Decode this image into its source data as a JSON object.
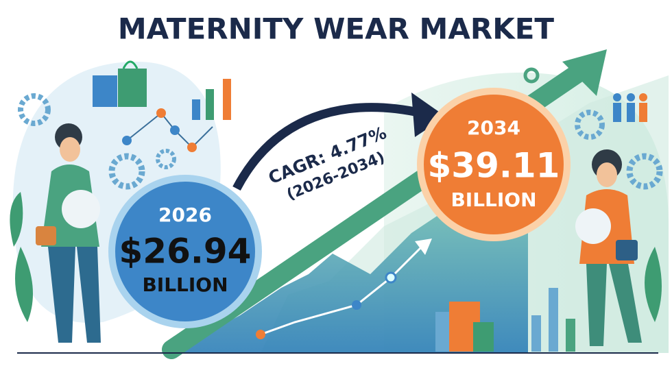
{
  "title": "MATERNITY WEAR MARKET",
  "start": {
    "year": "2026",
    "value": "$26.94",
    "unit": "BILLION"
  },
  "growth": {
    "label": "CAGR: 4.77%",
    "period": "(2026-2034)"
  },
  "end": {
    "year": "2034",
    "value": "$39.11",
    "unit": "BILLION"
  }
}
